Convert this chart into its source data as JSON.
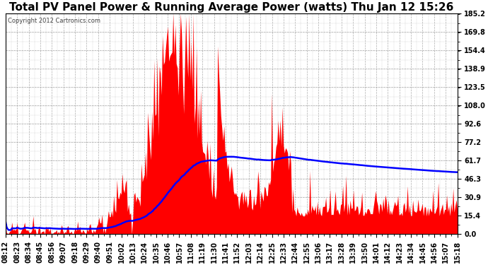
{
  "title": "Total PV Panel Power & Running Average Power (watts) Thu Jan 12 15:26",
  "copyright": "Copyright 2012 Cartronics.com",
  "ymin": 0.0,
  "ymax": 185.2,
  "yticks": [
    0.0,
    15.4,
    30.9,
    46.3,
    61.7,
    77.2,
    92.6,
    108.0,
    123.5,
    138.9,
    154.4,
    169.8,
    185.2
  ],
  "xtick_labels": [
    "08:12",
    "08:23",
    "08:34",
    "08:45",
    "08:56",
    "09:07",
    "09:18",
    "09:29",
    "09:40",
    "09:51",
    "10:02",
    "10:13",
    "10:24",
    "10:35",
    "10:46",
    "10:57",
    "11:08",
    "11:19",
    "11:30",
    "11:41",
    "11:52",
    "12:03",
    "12:14",
    "12:25",
    "12:33",
    "12:44",
    "12:55",
    "13:06",
    "13:17",
    "13:28",
    "13:39",
    "13:50",
    "14:01",
    "14:12",
    "14:23",
    "14:34",
    "14:45",
    "14:56",
    "15:07",
    "15:18"
  ],
  "bar_color": "#ff0000",
  "line_color": "#0000ff",
  "background_color": "#ffffff",
  "grid_color": "#999999",
  "title_fontsize": 11,
  "tick_fontsize": 7,
  "figsize": [
    6.9,
    3.75
  ],
  "dpi": 100
}
